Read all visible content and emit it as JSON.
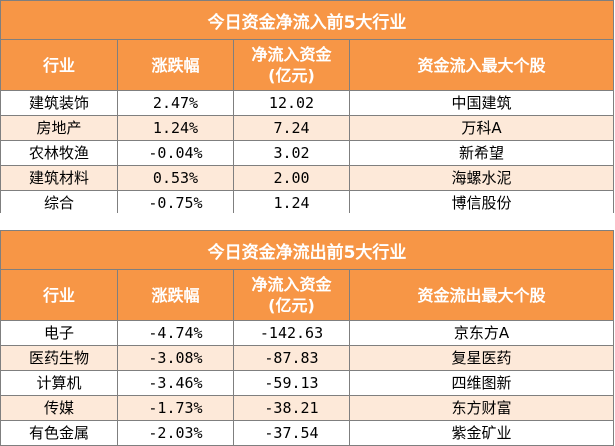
{
  "inflow": {
    "title": "今日资金净流入前5大行业",
    "headers": {
      "industry": "行业",
      "change": "涨跌幅",
      "flow_line1": "净流入资金",
      "flow_line2": "(亿元)",
      "top_stock": "资金流入最大个股"
    },
    "rows": [
      {
        "industry": "建筑装饰",
        "change": "2.47%",
        "flow": "12.02",
        "top_stock": "中国建筑"
      },
      {
        "industry": "房地产",
        "change": "1.24%",
        "flow": "7.24",
        "top_stock": "万科A"
      },
      {
        "industry": "农林牧渔",
        "change": "-0.04%",
        "flow": "3.02",
        "top_stock": "新希望"
      },
      {
        "industry": "建筑材料",
        "change": "0.53%",
        "flow": "2.00",
        "top_stock": "海螺水泥"
      },
      {
        "industry": "综合",
        "change": "-0.75%",
        "flow": "1.24",
        "top_stock": "博信股份"
      }
    ]
  },
  "outflow": {
    "title": "今日资金净流出前5大行业",
    "headers": {
      "industry": "行业",
      "change": "涨跌幅",
      "flow_line1": "净流入资金",
      "flow_line2": "(亿元)",
      "top_stock": "资金流出最大个股"
    },
    "rows": [
      {
        "industry": "电子",
        "change": "-4.74%",
        "flow": "-142.63",
        "top_stock": "京东方A"
      },
      {
        "industry": "医药生物",
        "change": "-3.08%",
        "flow": "-87.83",
        "top_stock": "复星医药"
      },
      {
        "industry": "计算机",
        "change": "-3.46%",
        "flow": "-59.13",
        "top_stock": "四维图新"
      },
      {
        "industry": "传媒",
        "change": "-1.73%",
        "flow": "-38.21",
        "top_stock": "东方财富"
      },
      {
        "industry": "有色金属",
        "change": "-2.03%",
        "flow": "-37.54",
        "top_stock": "紫金矿业"
      }
    ]
  },
  "colors": {
    "header_bg": "#f79646",
    "header_text": "#ffffff",
    "stripe": "#fde9d9",
    "border": "#7f7f7f"
  }
}
